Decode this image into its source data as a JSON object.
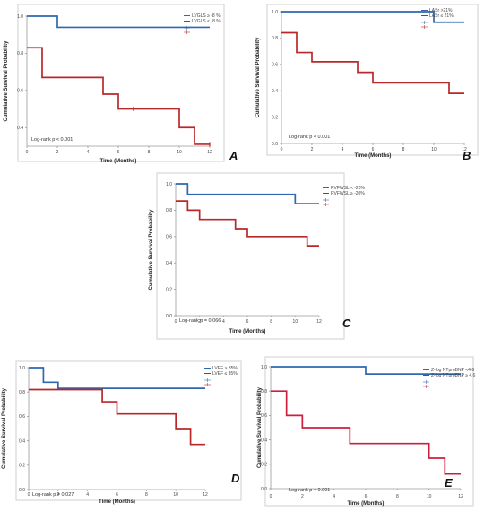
{
  "chart_data": [
    {
      "id": "A",
      "type": "line",
      "step": true,
      "panel_letter": "A",
      "xlabel": "Time (Months)",
      "ylabel": "Cumulative Survival Probability",
      "xlim": [
        0,
        12
      ],
      "ylim": [
        0.3,
        1.0
      ],
      "xticks": [
        "0",
        "2",
        "4",
        "6",
        "8",
        "10",
        "12"
      ],
      "yticks": [
        "0.4",
        "0.6",
        "0.8",
        "1.0"
      ],
      "annotation": "Log-rank p < 0.001",
      "legend_position": "top-right",
      "legend_labels": [
        "LVGLS ≥ -8 %",
        "LVGLS < -8 %"
      ],
      "series": [
        {
          "color": "#2f67b1",
          "x": [
            0,
            2,
            12
          ],
          "y": [
            1.0,
            0.94,
            0.94
          ]
        },
        {
          "color": "#b8282a",
          "x": [
            0,
            1,
            5,
            6,
            10,
            11,
            12
          ],
          "y": [
            0.83,
            0.67,
            0.58,
            0.5,
            0.4,
            0.31,
            0.31
          ]
        }
      ],
      "censored": [
        {
          "series": 1,
          "x": 7,
          "y": 0.5
        },
        {
          "series": 1,
          "x": 12,
          "y": 0.31
        }
      ]
    },
    {
      "id": "B",
      "type": "line",
      "step": true,
      "panel_letter": "B",
      "xlabel": "Time (Months)",
      "ylabel": "Cumulative Survival Probability",
      "xlim": [
        0,
        12
      ],
      "ylim": [
        0.0,
        1.0
      ],
      "xticks": [
        "0",
        "2",
        "4",
        "6",
        "8",
        "10",
        "12"
      ],
      "yticks": [
        "0.0",
        "0.2",
        "0.4",
        "0.6",
        "0.8",
        "1.0"
      ],
      "annotation": "Log-rank p < 0.001",
      "legend_position": "top-right",
      "legend_labels": [
        "LASr >21%",
        "LASr ≤ 21%"
      ],
      "series": [
        {
          "color": "#2f67b1",
          "x": [
            0,
            10,
            12
          ],
          "y": [
            1.0,
            0.92,
            0.92
          ]
        },
        {
          "color": "#b8282a",
          "x": [
            0,
            1,
            2,
            5,
            6,
            11,
            12
          ],
          "y": [
            0.84,
            0.69,
            0.62,
            0.54,
            0.46,
            0.38,
            0.38
          ]
        }
      ],
      "censored": []
    },
    {
      "id": "C",
      "type": "line",
      "step": true,
      "panel_letter": "C",
      "xlabel": "Time (Months)",
      "ylabel": "Cumulative Survival Probability",
      "xlim": [
        0,
        12
      ],
      "ylim": [
        0.0,
        1.0
      ],
      "xticks": [
        "0",
        "2",
        "4",
        "6",
        "8",
        "10",
        "12"
      ],
      "yticks": [
        "0.0",
        "0.2",
        "0.4",
        "0.6",
        "0.8",
        "1.0"
      ],
      "annotation": "Log-rank p = 0.066",
      "legend_position": "top-right",
      "legend_labels": [
        "RVFWSL < -20%",
        "RVFWSL ≥ -20%"
      ],
      "series": [
        {
          "color": "#2f67b1",
          "x": [
            0,
            1,
            10,
            12
          ],
          "y": [
            1.0,
            0.92,
            0.85,
            0.85
          ]
        },
        {
          "color": "#b8282a",
          "x": [
            0,
            1,
            2,
            5,
            6,
            11,
            12
          ],
          "y": [
            0.87,
            0.8,
            0.73,
            0.66,
            0.6,
            0.53,
            0.53
          ]
        }
      ],
      "censored": []
    },
    {
      "id": "D",
      "type": "line",
      "step": true,
      "panel_letter": "D",
      "xlabel": "Time (Months)",
      "ylabel": "Cumulative Survival Probability",
      "xlim": [
        0,
        12
      ],
      "ylim": [
        0.0,
        1.0
      ],
      "xticks": [
        "0",
        "2",
        "4",
        "6",
        "8",
        "10",
        "12"
      ],
      "yticks": [
        "0.0",
        "0.2",
        "0.4",
        "0.6",
        "0.8",
        "1.0"
      ],
      "annotation": "Log-rank p = 0.027",
      "legend_position": "top-right",
      "legend_labels": [
        "LVEF > 35%",
        "LVEF ≤ 35%"
      ],
      "series": [
        {
          "color": "#2f67b1",
          "x": [
            0,
            1,
            2,
            12
          ],
          "y": [
            1.0,
            0.88,
            0.83,
            0.83
          ]
        },
        {
          "color": "#b8282a",
          "x": [
            0,
            5,
            6,
            10,
            11,
            12
          ],
          "y": [
            0.82,
            0.72,
            0.62,
            0.5,
            0.37,
            0.37
          ]
        }
      ],
      "censored": []
    },
    {
      "id": "E",
      "type": "line",
      "step": true,
      "panel_letter": "E",
      "xlabel": "Time (Months)",
      "ylabel": "Cumulative Survival Probability",
      "xlim": [
        0,
        12
      ],
      "ylim": [
        0.0,
        1.0
      ],
      "xticks": [
        "0",
        "2",
        "4",
        "6",
        "8",
        "10",
        "12"
      ],
      "yticks": [
        "0.0",
        "0.2",
        "0.4",
        "0.6",
        "0.8",
        "1.0"
      ],
      "annotation": "Log-rank p < 0.001",
      "legend_position": "top-right",
      "legend_labels": [
        "Z-log NTproBNP <4.6",
        "Z-log NTproBNP ≥ 4.6"
      ],
      "series": [
        {
          "color": "#2f67b1",
          "x": [
            0,
            6,
            12
          ],
          "y": [
            1.0,
            0.94,
            0.94
          ]
        },
        {
          "color": "#cc1f3e",
          "x": [
            0,
            1,
            2,
            3,
            5,
            10,
            11,
            12
          ],
          "y": [
            0.8,
            0.6,
            0.5,
            0.5,
            0.37,
            0.25,
            0.12,
            0.12
          ]
        }
      ],
      "censored": []
    }
  ]
}
